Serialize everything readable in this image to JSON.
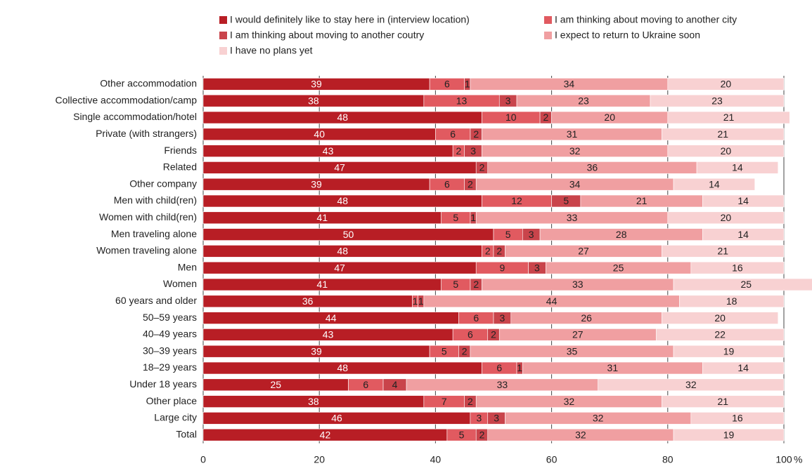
{
  "chart_data": {
    "type": "stacked_barh",
    "categories": [
      "Other accommodation",
      "Collective accommodation/camp",
      "Single accommodation/hotel",
      "Private (with strangers)",
      "Friends",
      "Related",
      "Other company",
      "Men with child(ren)",
      "Women with child(ren)",
      "Men traveling alone",
      "Women traveling alone",
      "Men",
      "Women",
      "60 years and older",
      "50–59 years",
      "40–49 years",
      "30–39 years",
      "18–29 years",
      "Under 18 years",
      "Other place",
      "Large city",
      "Total"
    ],
    "series": [
      {
        "name": "I would definitely like to stay here in (interview location)",
        "color": "#b81e25",
        "values": [
          39,
          38,
          48,
          40,
          43,
          47,
          39,
          48,
          41,
          50,
          48,
          47,
          41,
          36,
          44,
          43,
          39,
          48,
          25,
          38,
          46,
          42
        ]
      },
      {
        "name": "I am thinking about moving to another city",
        "color": "#e15a60",
        "values": [
          6,
          13,
          10,
          6,
          2,
          null,
          6,
          12,
          5,
          5,
          2,
          9,
          5,
          1,
          6,
          6,
          5,
          6,
          6,
          7,
          3,
          5
        ]
      },
      {
        "name": "I am thinking about moving to another coutry",
        "color": "#c9444b",
        "values": [
          1,
          3,
          2,
          2,
          3,
          2,
          2,
          5,
          1,
          3,
          2,
          3,
          2,
          1,
          3,
          2,
          2,
          1,
          4,
          2,
          3,
          2
        ]
      },
      {
        "name": "I expect to return to Ukraine soon",
        "color": "#f09fa1",
        "values": [
          34,
          23,
          20,
          31,
          32,
          36,
          34,
          21,
          33,
          28,
          27,
          25,
          33,
          44,
          26,
          27,
          35,
          31,
          33,
          32,
          32,
          32
        ]
      },
      {
        "name": "I have no plans yet",
        "color": "#f8d1d2",
        "values": [
          20,
          23,
          21,
          21,
          20,
          14,
          14,
          14,
          20,
          14,
          21,
          16,
          25,
          18,
          20,
          22,
          19,
          14,
          32,
          21,
          16,
          19
        ]
      }
    ],
    "xlim": [
      0,
      100
    ],
    "xticks": [
      0,
      20,
      40,
      60,
      80,
      100
    ],
    "x_unit": "%",
    "grid": true
  }
}
